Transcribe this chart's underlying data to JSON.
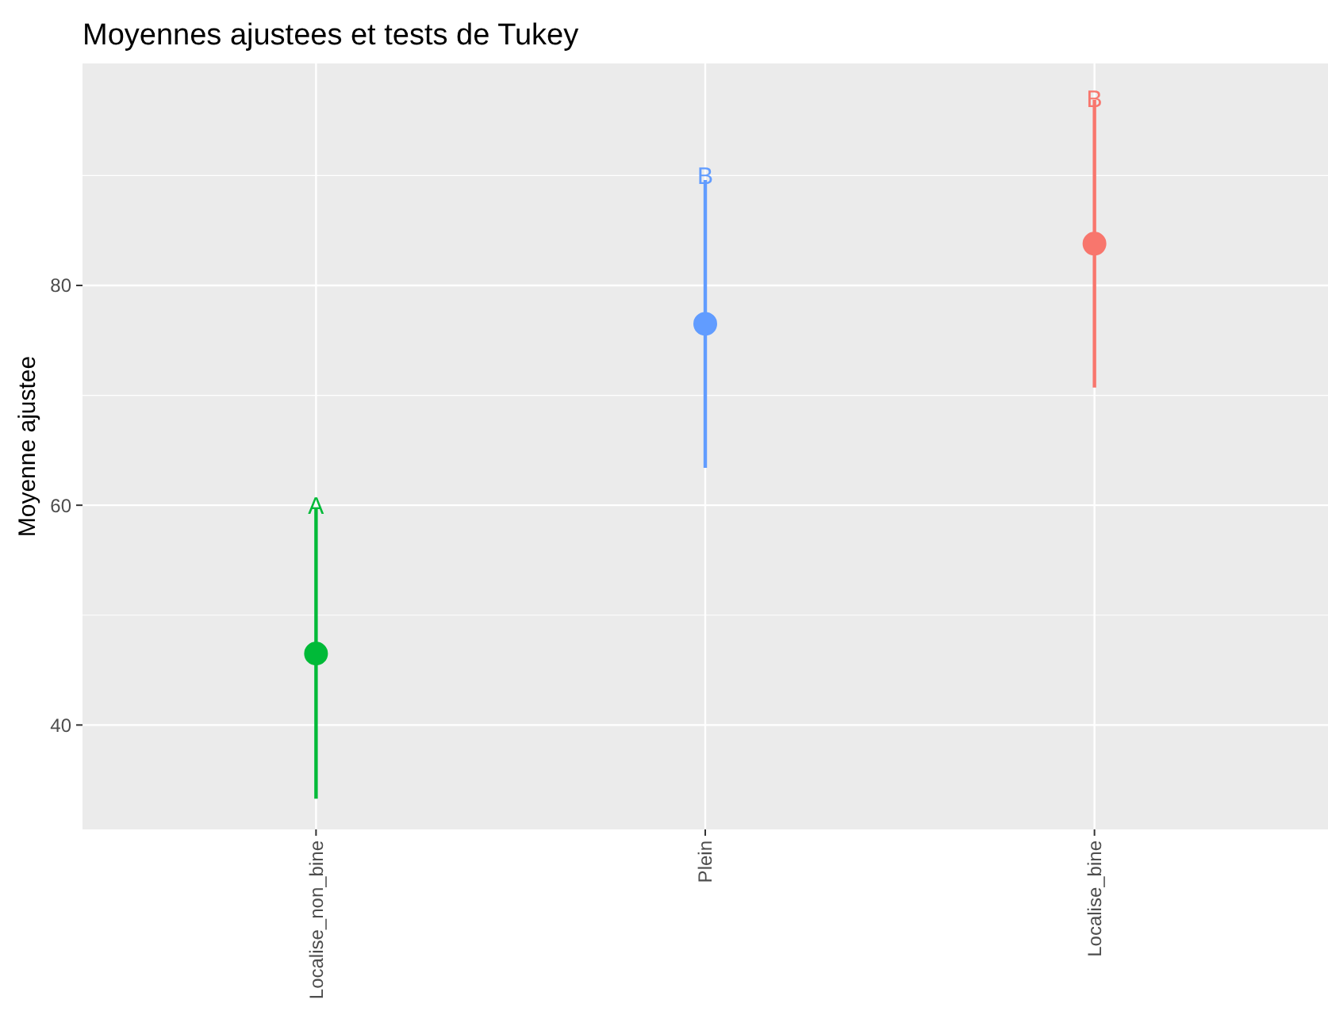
{
  "chart_data": {
    "type": "scatter",
    "title": "Moyennes ajustees et tests de Tukey",
    "ylabel": "Moyenne ajustee",
    "categories": [
      "Localise_non_bine",
      "Plein",
      "Localise_bine"
    ],
    "values": [
      46.5,
      76.5,
      83.8
    ],
    "errors": [
      13.2,
      13.1,
      13.1
    ],
    "colors": [
      "#00ba38",
      "#619cff",
      "#f8766d"
    ],
    "annotations": [
      {
        "text": "A",
        "x": "Localise_non_bine",
        "y": 60
      },
      {
        "text": "B",
        "x": "Plein",
        "y": 90
      },
      {
        "text": "B",
        "x": "Localise_bine",
        "y": 97
      }
    ],
    "ylim": [
      30.5,
      100.2
    ],
    "yticks": [
      40,
      60,
      80
    ],
    "grid": true,
    "marker": "circle"
  }
}
